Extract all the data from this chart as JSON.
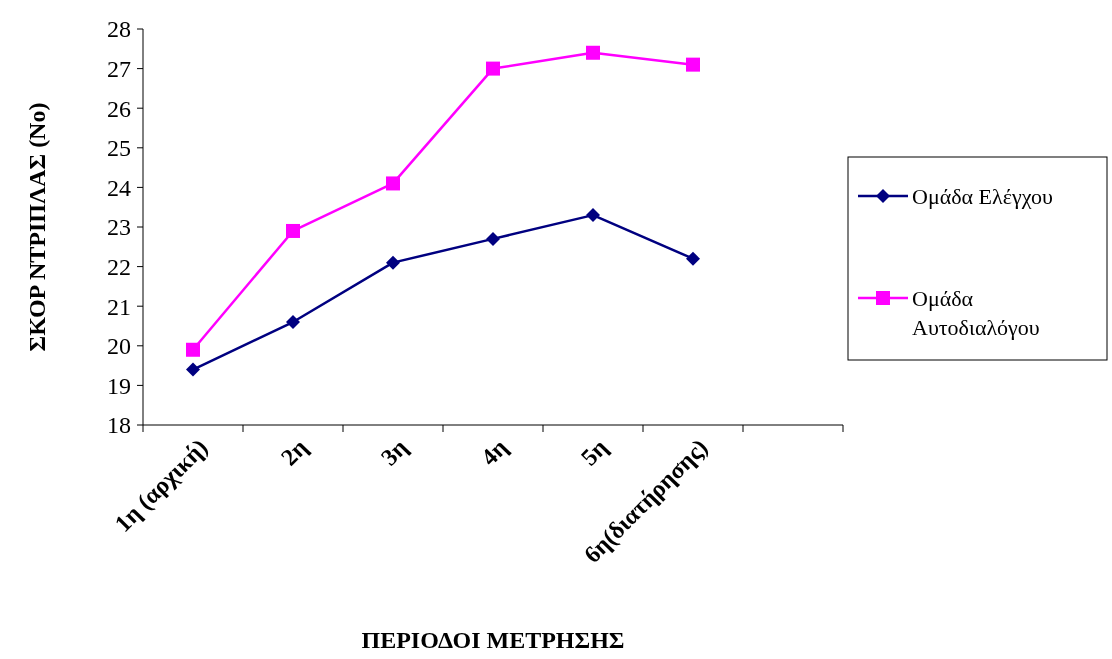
{
  "chart_data": {
    "type": "line",
    "xlabel": "ΠΕΡΙΟΔΟΙ ΜΕΤΡΗΣΗΣ",
    "ylabel": "ΣΚΟΡ ΝΤΡΙΠΛΑΣ (Νο)",
    "categories": [
      "1η (αρχική)",
      "2η",
      "3η",
      "4η",
      "5η",
      "6η(διατήρησης)",
      null
    ],
    "series": [
      {
        "name": "Ομάδα Ελέγχου",
        "color": "#000080",
        "marker": "diamond",
        "values": [
          19.4,
          20.6,
          22.1,
          22.7,
          23.3,
          22.2,
          null
        ]
      },
      {
        "name": "Ομάδα Αυτοδιαλόγου",
        "color": "#ff00ff",
        "marker": "square",
        "values": [
          19.9,
          22.9,
          24.1,
          27.0,
          27.4,
          27.1,
          null
        ]
      }
    ],
    "ylim": [
      18,
      28
    ],
    "yticks": [
      18,
      19,
      20,
      21,
      22,
      23,
      24,
      25,
      26,
      27,
      28
    ],
    "grid": false,
    "legend": "right"
  }
}
